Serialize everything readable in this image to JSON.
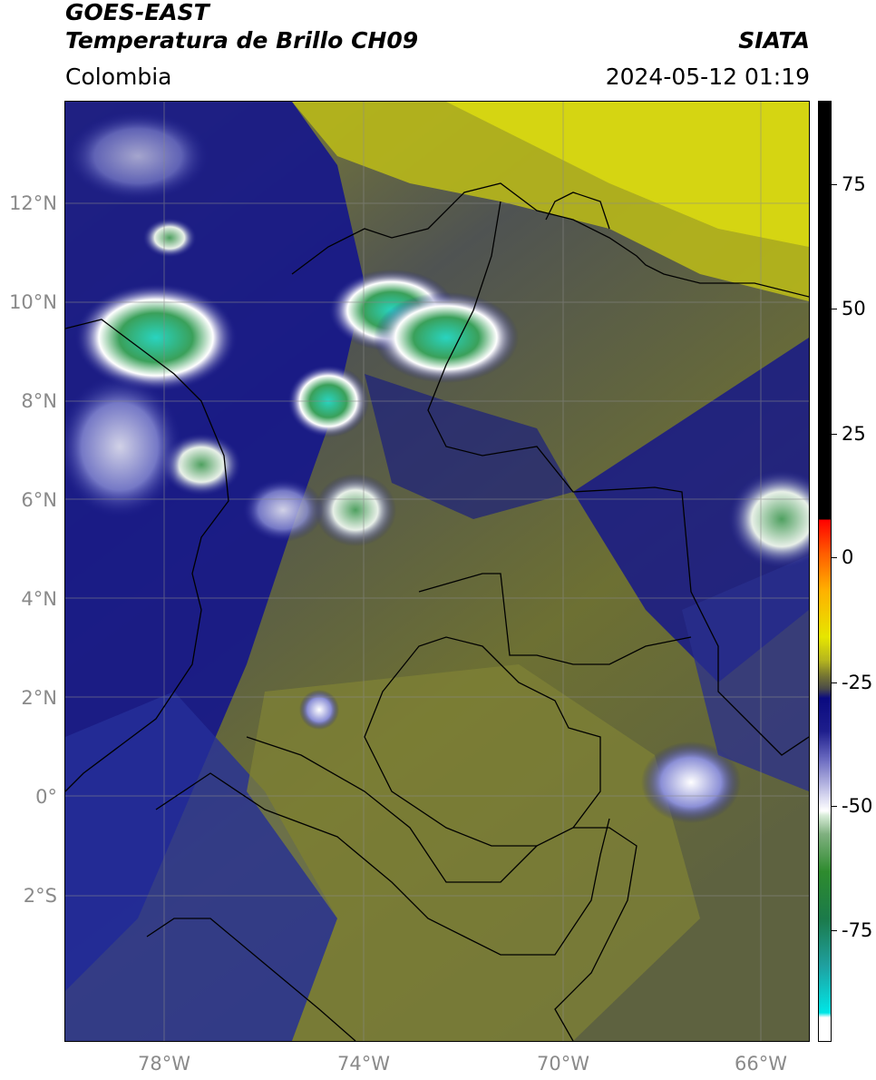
{
  "header": {
    "title_line1": "GOES-EAST",
    "title_line2": "Temperatura de Brillo CH09",
    "brand": "SIATA",
    "region": "Colombia",
    "datetime": "2024-05-12 01:19"
  },
  "map": {
    "lat_labels": [
      "12°N",
      "10°N",
      "8°N",
      "6°N",
      "4°N",
      "2°N",
      "0°",
      "2°S"
    ],
    "lon_labels": [
      "78°W",
      "74°W",
      "70°W",
      "66°W"
    ],
    "gridlines": true,
    "cloud_colors": {
      "clear_air": "#6f7230",
      "dry_yellow": "#d8d800",
      "moist_blue": "#16178a",
      "cold_white": "#ffffff",
      "deep_green": "#3aa05a",
      "coldest_cyan": "#29d4c0"
    }
  },
  "colorbar": {
    "labels": [
      "75",
      "50",
      "25",
      "0",
      "-25",
      "-50",
      "-75"
    ],
    "colors": {
      "black": "#000000",
      "red": "#ff0000",
      "orange": "#ff9900",
      "yellow": "#e6e600",
      "olive": "#7a7a30",
      "navy": "#0a0a80",
      "white": "#ffffff",
      "green": "#2e8b2e",
      "cyan": "#00e6e6"
    }
  }
}
